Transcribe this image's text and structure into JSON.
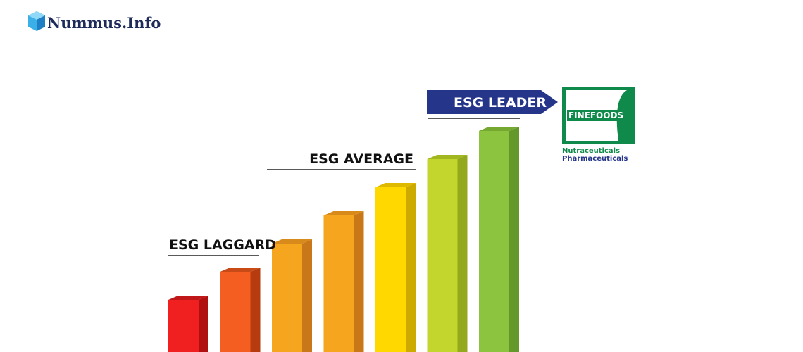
{
  "header": {
    "brand": "Nummus.Info"
  },
  "levels": {
    "leader": "ESG LEADER",
    "average": "ESG AVERAGE",
    "laggard": "ESG LAGGARD"
  },
  "company": {
    "name": "FINEFOODS",
    "line1": "Nutraceuticals",
    "line2": "Pharmaceuticals"
  }
}
